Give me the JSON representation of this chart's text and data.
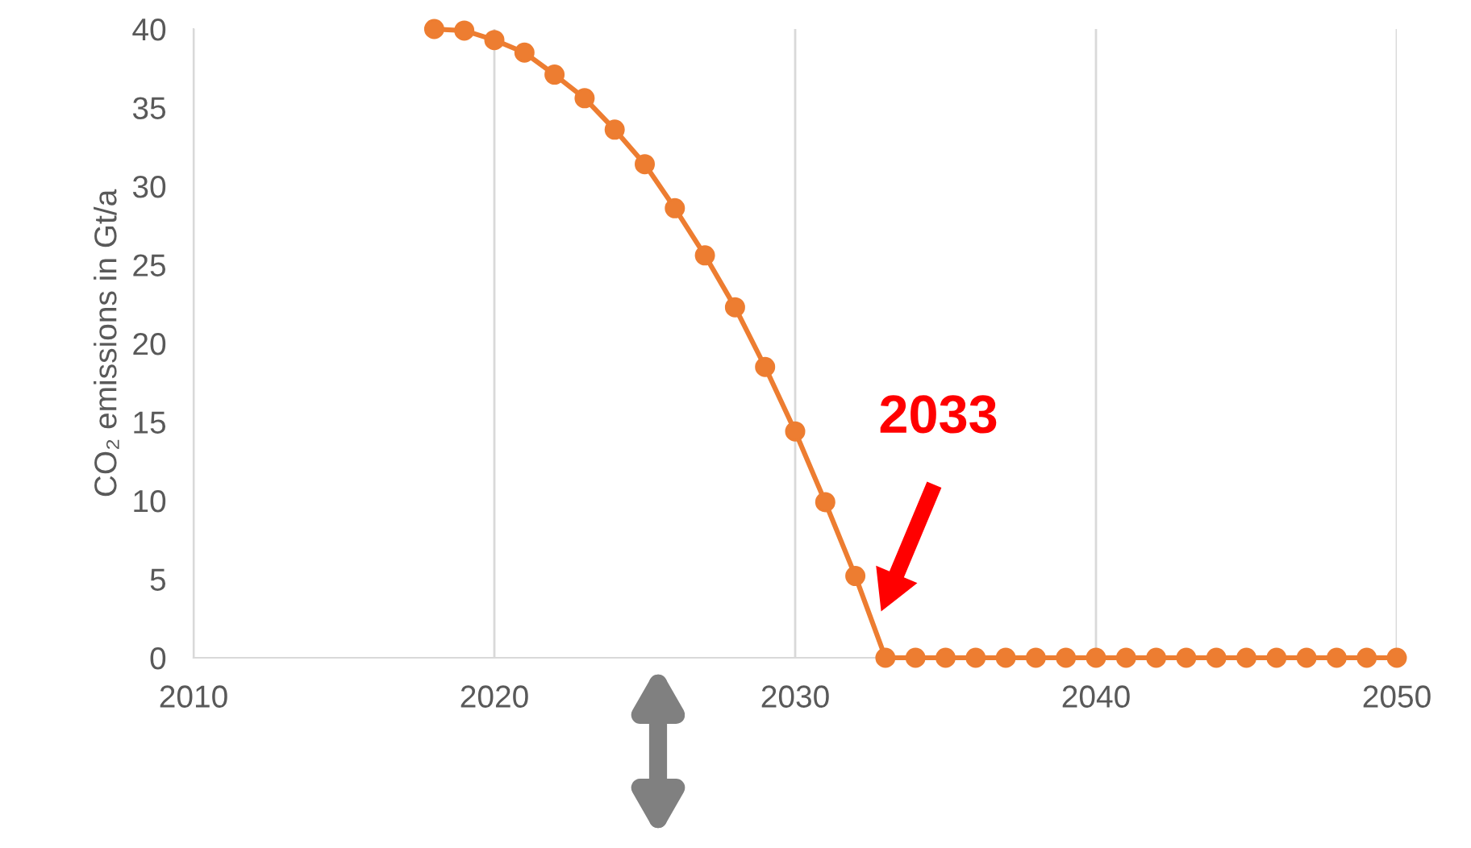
{
  "chart_data": {
    "type": "line",
    "ylabel": "CO₂ emissions in Gt/a",
    "x": [
      2018,
      2019,
      2020,
      2021,
      2022,
      2023,
      2024,
      2025,
      2026,
      2027,
      2028,
      2029,
      2030,
      2031,
      2032,
      2033,
      2034,
      2035,
      2036,
      2037,
      2038,
      2039,
      2040,
      2041,
      2042,
      2043,
      2044,
      2045,
      2046,
      2047,
      2048,
      2049,
      2050
    ],
    "series": [
      {
        "color": "#ed7d31",
        "values": [
          40,
          39.9,
          39.3,
          38.5,
          37.1,
          35.6,
          33.6,
          31.4,
          28.6,
          25.6,
          22.3,
          18.5,
          14.4,
          9.9,
          5.2,
          0,
          0,
          0,
          0,
          0,
          0,
          0,
          0,
          0,
          0,
          0,
          0,
          0,
          0,
          0,
          0,
          0,
          0
        ]
      }
    ],
    "xlim": [
      2010,
      2050
    ],
    "xticks": [
      2010,
      2020,
      2030,
      2040,
      2050
    ],
    "ylim": [
      0,
      40
    ],
    "yticks": [
      0,
      5,
      10,
      15,
      20,
      25,
      30,
      35,
      40
    ],
    "grid": "x",
    "marker": "circle",
    "line_style": "solid",
    "annotations": [
      "2033"
    ]
  }
}
